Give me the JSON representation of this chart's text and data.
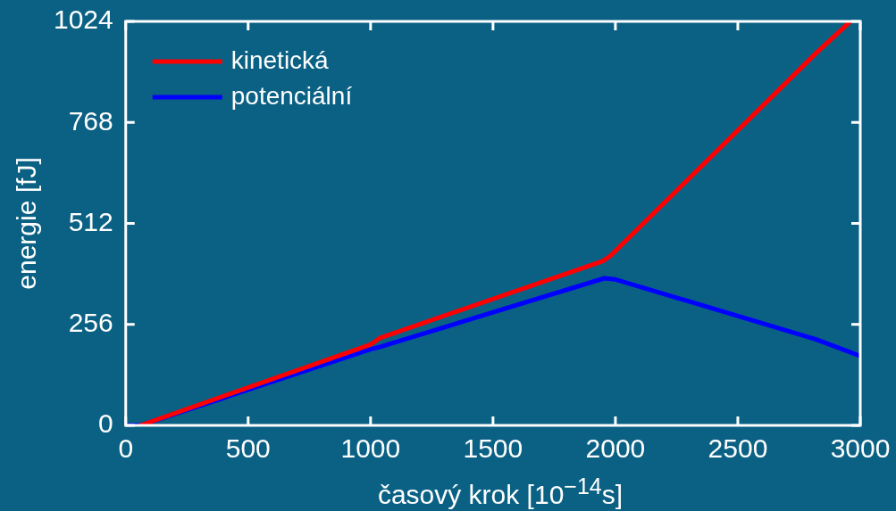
{
  "chart_data": {
    "type": "line",
    "xlabel": "časový krok [10$^{−14}$s]",
    "ylabel": "energie [fJ]",
    "xlim": [
      0,
      3000
    ],
    "xticks": [
      0,
      500,
      1000,
      1500,
      2000,
      2500,
      3000
    ],
    "ylim": [
      0,
      1024
    ],
    "yticks": [
      0,
      256,
      512,
      768,
      1024
    ],
    "grid": false,
    "legend": "top left",
    "line_style": "solid",
    "marker": "none",
    "series": [
      {
        "name": "kinetická",
        "color": "#ff0000",
        "x": [
          60,
          1000,
          1040,
          1950,
          1980,
          2820,
          2960
        ],
        "values": [
          0,
          205,
          222,
          417,
          430,
          944,
          1024
        ]
      },
      {
        "name": "potenciální",
        "color": "#0000ff",
        "x": [
          0,
          60,
          1000,
          1040,
          1955,
          2000,
          2820,
          3000
        ],
        "values": [
          0,
          0,
          193,
          199,
          373,
          370,
          218,
          176
        ]
      }
    ]
  }
}
